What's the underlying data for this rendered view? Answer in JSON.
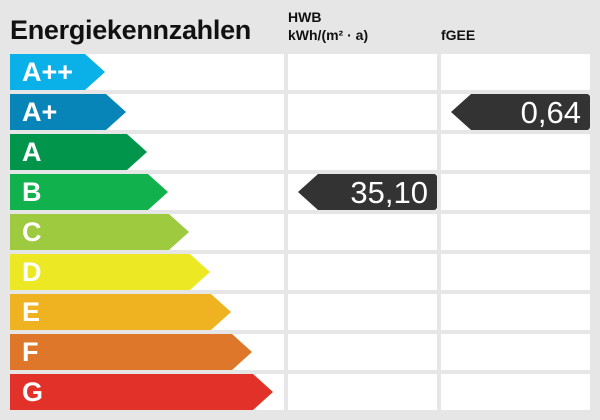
{
  "title": "Energiekennzahlen",
  "columns": {
    "hwb": {
      "label": "HWB",
      "unit": "kWh/(m² · a)"
    },
    "fgee": {
      "label": "fGEE"
    }
  },
  "classes": [
    {
      "label": "A++",
      "color": "#0ab0e8"
    },
    {
      "label": "A+",
      "color": "#0785b8"
    },
    {
      "label": "A",
      "color": "#00954a"
    },
    {
      "label": "B",
      "color": "#11b14e"
    },
    {
      "label": "C",
      "color": "#9dca3e"
    },
    {
      "label": "D",
      "color": "#ede824"
    },
    {
      "label": "E",
      "color": "#efb321"
    },
    {
      "label": "F",
      "color": "#df772a"
    },
    {
      "label": "G",
      "color": "#e13128"
    }
  ],
  "values": {
    "hwb": {
      "value": "35,10",
      "class": "B"
    },
    "fgee": {
      "value": "0,64",
      "class": "A+"
    }
  },
  "marker_color": "#333333"
}
